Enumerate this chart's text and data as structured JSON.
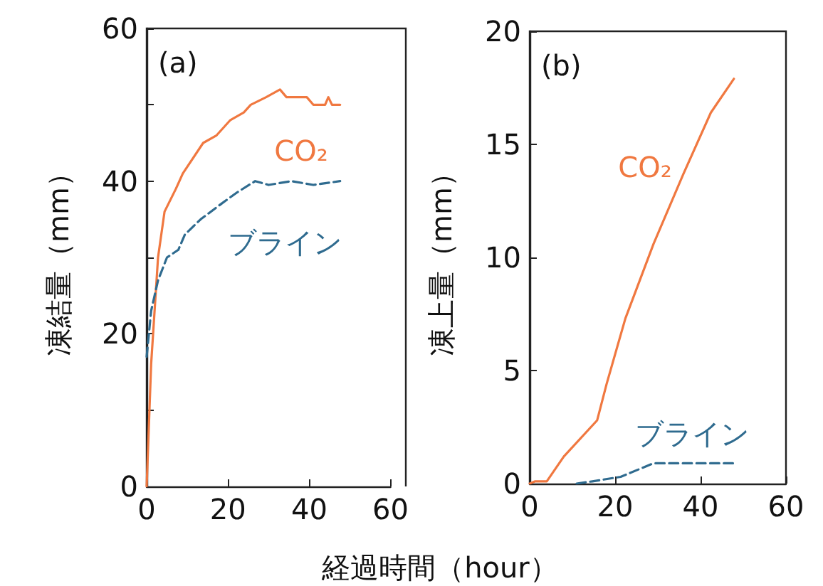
{
  "chart_data": [
    {
      "type": "line",
      "ylabel": "凍結量（mm）",
      "xlabel": "経過時間（hour）",
      "annotations": [
        "(a)"
      ],
      "xlim": [
        0,
        60
      ],
      "xticks": [
        0,
        20,
        40,
        60
      ],
      "ylim": [
        0,
        60
      ],
      "yticks": [
        0,
        {
          "value": 10,
          "label": null
        },
        20,
        {
          "value": 30,
          "label": null
        },
        40,
        {
          "value": 50,
          "label": null
        },
        60
      ],
      "grid": false,
      "legend": false,
      "marker": "none",
      "series": [
        {
          "name": "CO₂",
          "color": "#f07840",
          "line_style": "solid",
          "x": [
            0,
            1.1,
            2.8,
            4.4,
            7.2,
            8.9,
            13.9,
            17.2,
            20.6,
            23.9,
            25.6,
            29.4,
            32.8,
            34.4,
            39.4,
            41,
            43.9,
            44.7,
            45.6,
            47.6
          ],
          "values": [
            0,
            16,
            30,
            36,
            39,
            41,
            45,
            46,
            48,
            49,
            50,
            51,
            52,
            51,
            51,
            50,
            50,
            51,
            50,
            50
          ]
        },
        {
          "name": "ブライン",
          "color": "#2f6b8f",
          "line_style": "dashed",
          "x": [
            0,
            1.1,
            2.8,
            5,
            7.8,
            9.4,
            13.3,
            18.3,
            22.2,
            26.7,
            30,
            35.6,
            41,
            47.6
          ],
          "values": [
            17,
            23,
            27,
            30,
            31,
            33,
            35,
            37,
            38.5,
            40,
            39.5,
            40,
            39.5,
            40
          ]
        }
      ]
    },
    {
      "type": "line",
      "ylabel": "凍上量（mm）",
      "annotations": [
        "(b)"
      ],
      "xlim": [
        0,
        60
      ],
      "xticks": [
        0,
        20,
        40,
        60
      ],
      "ylim": [
        0,
        20
      ],
      "yticks": [
        0,
        5,
        10,
        15,
        20
      ],
      "grid": false,
      "legend": false,
      "marker": "none",
      "series": [
        {
          "name": "CO₂",
          "color": "#f07840",
          "line_style": "solid",
          "x": [
            0,
            1.3,
            4,
            8,
            15.8,
            18,
            22.4,
            29,
            36,
            42.4,
            47.8
          ],
          "values": [
            0,
            0.1,
            0.1,
            1.2,
            2.8,
            4.4,
            7.3,
            10.6,
            13.7,
            16.4,
            17.9
          ]
        },
        {
          "name": "ブライン",
          "color": "#2f6b8f",
          "line_style": "dashed",
          "x": [
            11,
            14.7,
            21.3,
            29,
            48
          ],
          "values": [
            0,
            0.1,
            0.3,
            0.9,
            0.9
          ]
        }
      ]
    }
  ]
}
